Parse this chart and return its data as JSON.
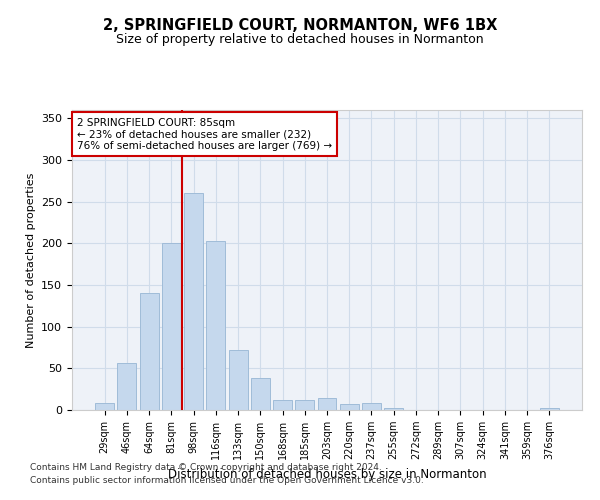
{
  "title": "2, SPRINGFIELD COURT, NORMANTON, WF6 1BX",
  "subtitle": "Size of property relative to detached houses in Normanton",
  "xlabel": "Distribution of detached houses by size in Normanton",
  "ylabel": "Number of detached properties",
  "categories": [
    "29sqm",
    "46sqm",
    "64sqm",
    "81sqm",
    "98sqm",
    "116sqm",
    "133sqm",
    "150sqm",
    "168sqm",
    "185sqm",
    "203sqm",
    "220sqm",
    "237sqm",
    "255sqm",
    "272sqm",
    "289sqm",
    "307sqm",
    "324sqm",
    "341sqm",
    "359sqm",
    "376sqm"
  ],
  "values": [
    9,
    57,
    141,
    200,
    260,
    203,
    72,
    38,
    12,
    12,
    14,
    7,
    8,
    3,
    0,
    0,
    0,
    0,
    0,
    0,
    3
  ],
  "bar_color": "#c5d8ed",
  "bar_edge_color": "#a0bcd8",
  "vline_color": "#cc0000",
  "annotation_line1": "2 SPRINGFIELD COURT: 85sqm",
  "annotation_line2": "← 23% of detached houses are smaller (232)",
  "annotation_line3": "76% of semi-detached houses are larger (769) →",
  "annotation_box_color": "#ffffff",
  "annotation_box_edge": "#cc0000",
  "ylim": [
    0,
    360
  ],
  "yticks": [
    0,
    50,
    100,
    150,
    200,
    250,
    300,
    350
  ],
  "grid_color": "#d0dcea",
  "background_color": "#eef2f8",
  "vline_index": 3.5,
  "footer_line1": "Contains HM Land Registry data © Crown copyright and database right 2024.",
  "footer_line2": "Contains public sector information licensed under the Open Government Licence v3.0."
}
